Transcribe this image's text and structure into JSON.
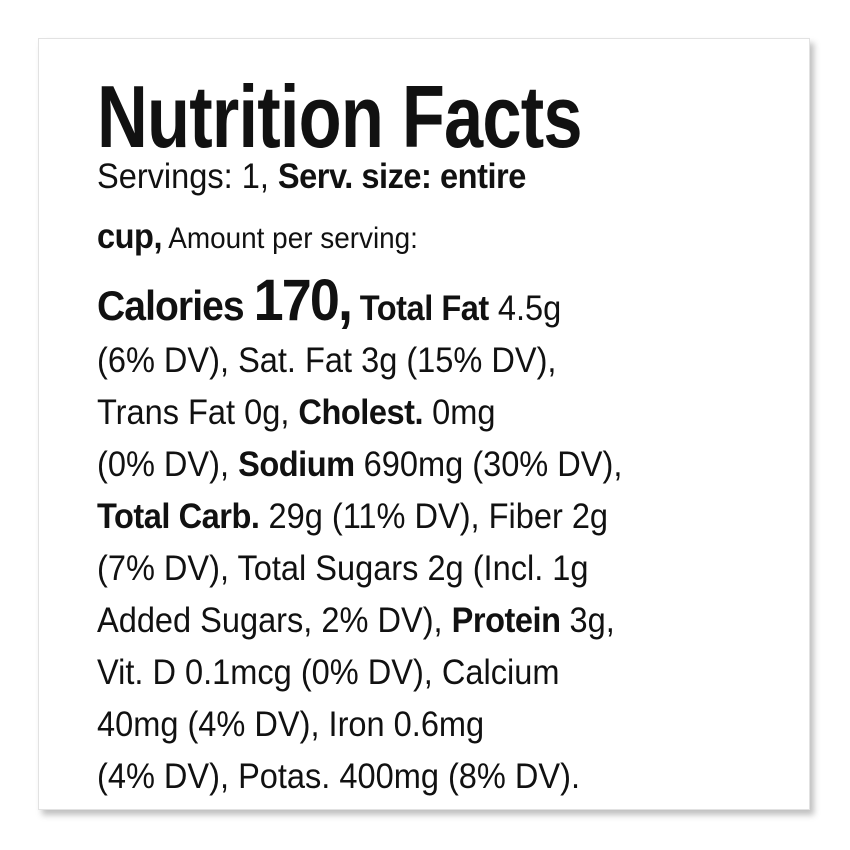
{
  "title": "Nutrition Facts",
  "lines": [
    [
      {
        "text": "Servings: 1, ",
        "style": "regular"
      },
      {
        "text": "Serv. size: entire",
        "style": "bold"
      }
    ],
    [
      {
        "text": "cup,",
        "style": "bold"
      },
      {
        "text": " Amount per serving:",
        "style": "small"
      }
    ],
    [
      {
        "text": "Calories ",
        "style": "large"
      },
      {
        "text": "170,",
        "style": "huge"
      },
      {
        "text": " Total Fat",
        "style": "bold"
      },
      {
        "text": " 4.5g",
        "style": "regular"
      }
    ],
    [
      {
        "text": "(6% DV), Sat. Fat 3g (15% DV),",
        "style": "regular"
      }
    ],
    [
      {
        "text": "Trans Fat 0g, ",
        "style": "regular"
      },
      {
        "text": "Cholest.",
        "style": "bold"
      },
      {
        "text": " 0mg",
        "style": "regular"
      }
    ],
    [
      {
        "text": "(0% DV), ",
        "style": "regular"
      },
      {
        "text": "Sodium",
        "style": "bold"
      },
      {
        "text": " 690mg (30% DV),",
        "style": "regular"
      }
    ],
    [
      {
        "text": "Total Carb.",
        "style": "bold"
      },
      {
        "text": " 29g (11% DV), Fiber 2g",
        "style": "regular"
      }
    ],
    [
      {
        "text": "(7% DV), Total Sugars 2g (Incl. 1g",
        "style": "regular"
      }
    ],
    [
      {
        "text": "Added Sugars, 2% DV), ",
        "style": "regular"
      },
      {
        "text": "Protein",
        "style": "bold"
      },
      {
        "text": " 3g,",
        "style": "regular"
      }
    ],
    [
      {
        "text": "Vit. D 0.1mcg (0% DV), Calcium",
        "style": "regular"
      }
    ],
    [
      {
        "text": "40mg (4% DV), Iron 0.6mg",
        "style": "regular"
      }
    ],
    [
      {
        "text": "(4% DV), Potas. 400mg (8% DV).",
        "style": "regular"
      }
    ]
  ]
}
